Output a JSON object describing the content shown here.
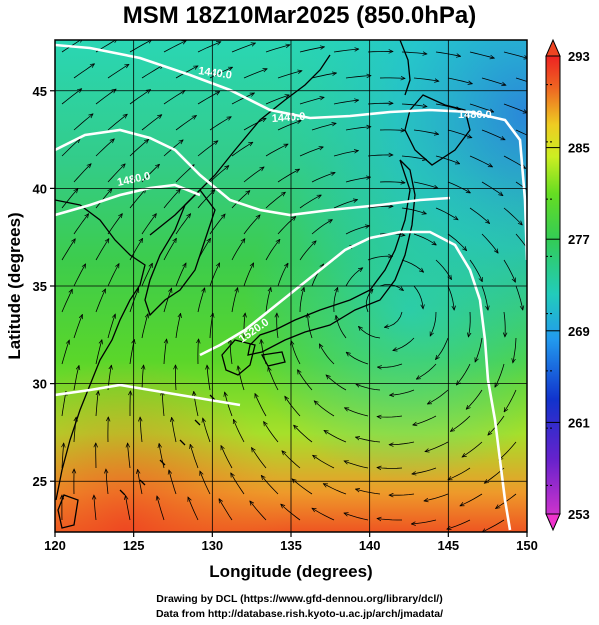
{
  "title": "MSM 18Z10Mar2025 (850.0hPa)",
  "footer": {
    "line1": "Drawing by DCL (https://www.gfd-dennou.org/library/dcl/)",
    "line2": "Data from http://database.rish.kyoto-u.ac.jp/arch/jmadata/"
  },
  "axes": {
    "xlabel": "Longitude (degrees)",
    "ylabel": "Latitude  (degrees)",
    "xlim": [
      120,
      150
    ],
    "ylim": [
      22.4,
      47.6
    ],
    "xticks": [
      120,
      125,
      130,
      135,
      140,
      145,
      150
    ],
    "yticks": [
      25,
      30,
      35,
      40,
      45
    ]
  },
  "colorbar": {
    "min": 253,
    "max": 293,
    "labels": [
      253,
      261,
      269,
      277,
      285,
      293
    ]
  },
  "contours": {
    "labels": [
      "1440.0",
      "1440.0",
      "1480.0",
      "1480.0",
      "1520.0"
    ]
  },
  "colors": {
    "contour": "#ffffff",
    "streamline": "#000000"
  }
}
